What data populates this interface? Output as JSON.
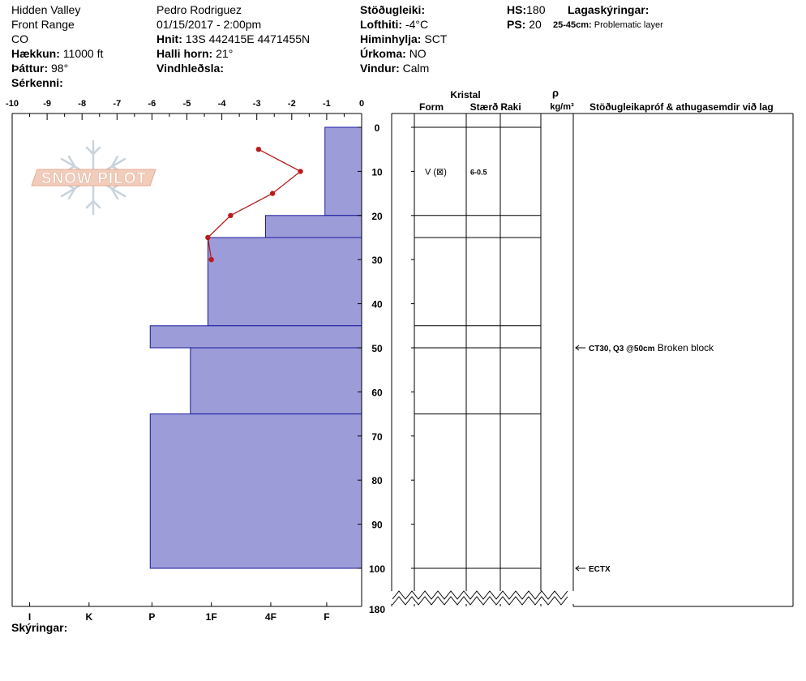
{
  "header": {
    "location": "Hidden Valley",
    "range": "Front Range",
    "state": "CO",
    "elevation_label": "Hækkun:",
    "elevation_value": "11000 ft",
    "aspect_label": "Þáttur:",
    "aspect_value": "98°",
    "features_label": "Sérkenni:",
    "observer": "Pedro Rodriguez",
    "datetime": "01/15/2017 - 2:00pm",
    "coords_label": "Hnit:",
    "coords_value": "13S 442415E 4471455N",
    "slope_label": "Halli horn:",
    "slope_value": "21°",
    "wind_loading_label": "Vindhleðsla:",
    "stability_label": "Stöðugleiki:",
    "air_temp_label": "Lofthiti:",
    "air_temp_value": "-4°C",
    "sky_label": "Himinhylja:",
    "sky_value": "SCT",
    "precip_label": "Úrkoma:",
    "precip_value": "NO",
    "wind_label": "Vindur:",
    "wind_value": "Calm",
    "hs_label": "HS:",
    "hs_value": "180",
    "ps_label": "PS:",
    "ps_value": "20",
    "layer_notes_label": "Lagaskýringar:",
    "layer_note_range": "25-45cm:",
    "layer_note_text": "Problematic layer"
  },
  "columns": {
    "crystal": "Kristal",
    "form": "Form",
    "size": "Stærð",
    "moisture": "Raki",
    "rho": "ρ",
    "density_unit": "kg/m³",
    "tests": "Stöðugleikapróf & athugasemdir við lag"
  },
  "footer": {
    "legend_label": "Skýringar:"
  },
  "logo": {
    "text": "SNOW PILOT"
  },
  "colors": {
    "hardness_fill": "#9c9cd8",
    "hardness_stroke": "#1a1aa0",
    "temp_line": "#b81c1c"
  },
  "chart_data": {
    "type": "area",
    "temp_axis": {
      "min": -10,
      "max": 0,
      "ticks": [
        -10,
        -9,
        -8,
        -7,
        -6,
        -5,
        -4,
        -3,
        -2,
        -1,
        0
      ],
      "labels": [
        "-10",
        "-9",
        "-8",
        "-7",
        "-6",
        "-5",
        "-4",
        "-3",
        "-2",
        "-1",
        "0"
      ]
    },
    "depth_axis": {
      "min": 0,
      "max": 100,
      "bottom_label": "180",
      "ticks": [
        0,
        10,
        20,
        30,
        40,
        50,
        60,
        70,
        80,
        90,
        100
      ],
      "labels": [
        "0",
        "10",
        "20",
        "30",
        "40",
        "50",
        "60",
        "70",
        "80",
        "90",
        "100"
      ]
    },
    "hardness_axis": {
      "labels": [
        "I",
        "K",
        "P",
        "1F",
        "4F",
        "F"
      ],
      "positions": [
        -9.5,
        -7.8,
        -6.0,
        -4.3,
        -2.6,
        -1.0
      ]
    },
    "hardness_layers": [
      {
        "top": 0,
        "bottom": 20,
        "hardness": -1.05
      },
      {
        "top": 20,
        "bottom": 25,
        "hardness": -2.75
      },
      {
        "top": 25,
        "bottom": 45,
        "hardness": -4.4
      },
      {
        "top": 45,
        "bottom": 50,
        "hardness": -6.05
      },
      {
        "top": 50,
        "bottom": 65,
        "hardness": -4.9
      },
      {
        "top": 65,
        "bottom": 100,
        "hardness": -6.05
      }
    ],
    "temperature_profile": [
      {
        "depth": 5,
        "temp": -2.95
      },
      {
        "depth": 10,
        "temp": -1.75
      },
      {
        "depth": 15,
        "temp": -2.55
      },
      {
        "depth": 20,
        "temp": -3.75
      },
      {
        "depth": 25,
        "temp": -4.4
      },
      {
        "depth": 30,
        "temp": -4.3
      }
    ],
    "layer_boundaries": [
      0,
      20,
      25,
      45,
      50,
      65,
      100
    ],
    "crystal_rows": [
      {
        "depth": 10,
        "form": "V (⊠)",
        "size": "6-0.5"
      }
    ],
    "tests": [
      {
        "depth": 50,
        "result": "CT30, Q3 @50cm",
        "comment": "Broken block"
      },
      {
        "depth": 100,
        "result": "ECTX",
        "comment": ""
      }
    ]
  }
}
